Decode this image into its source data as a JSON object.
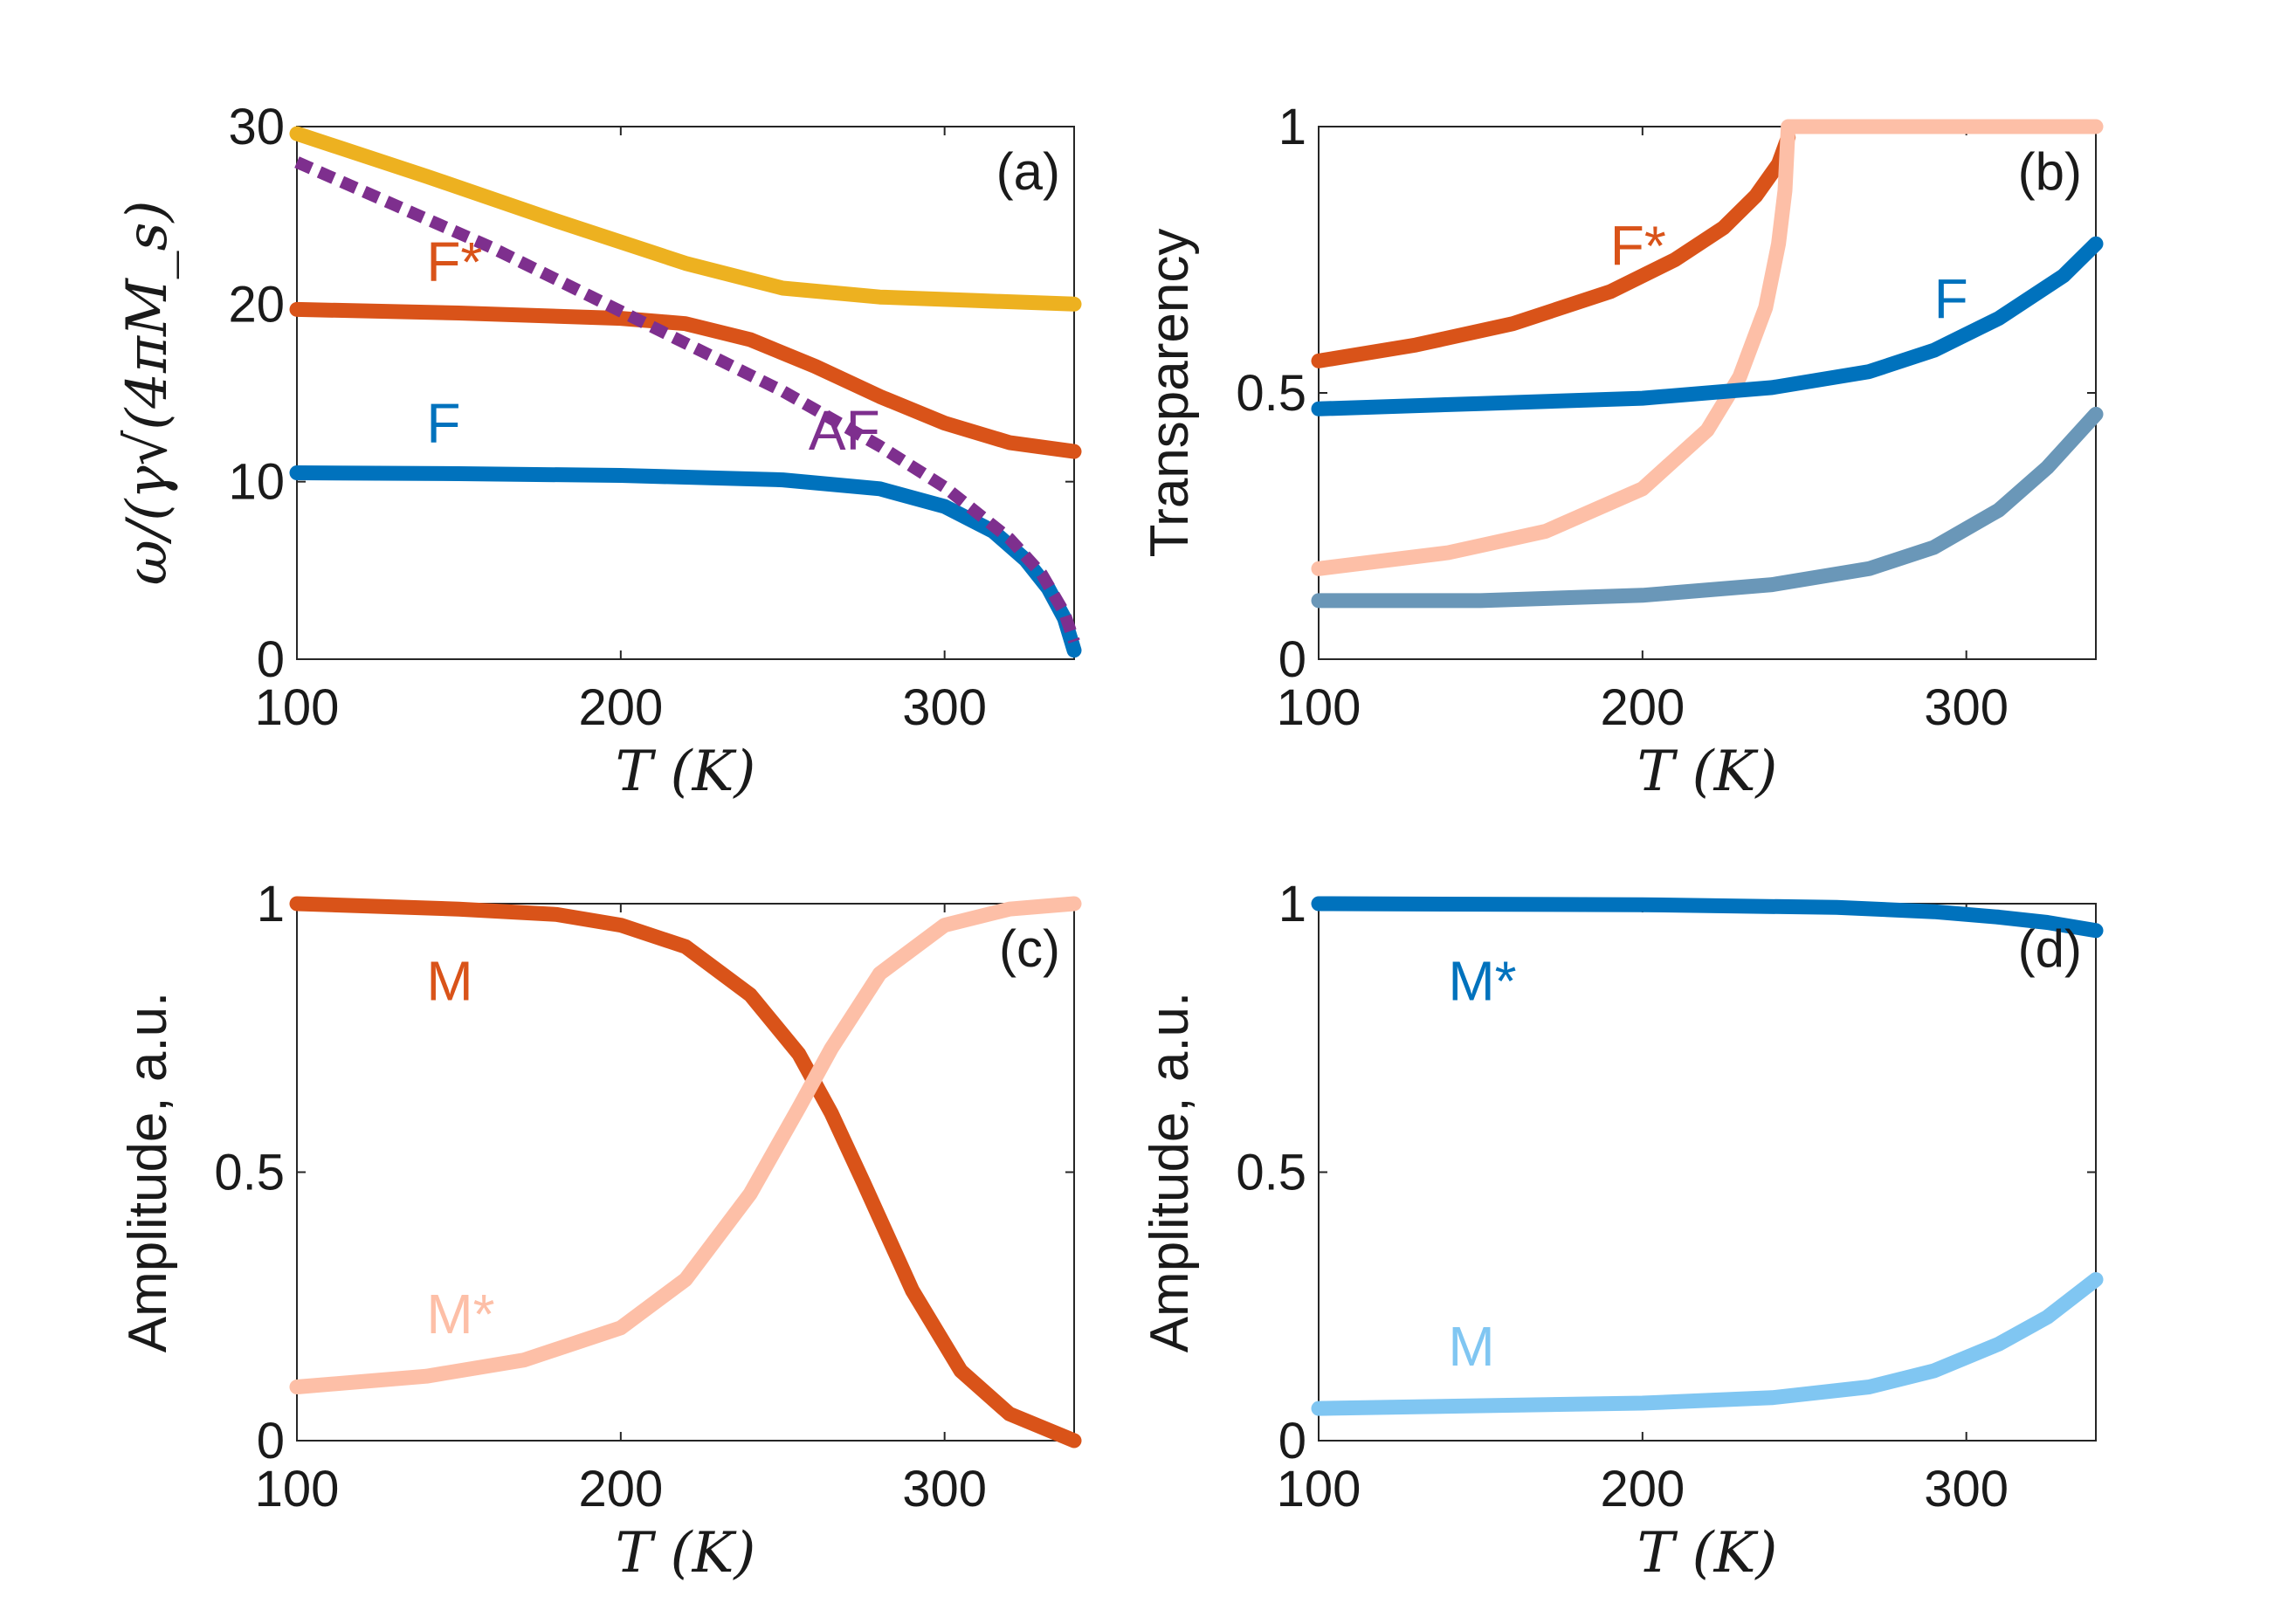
{
  "chart_data": [
    {
      "id": "a",
      "type": "line",
      "panel_label": "(a)",
      "xlabel": "T (K)",
      "ylabel": "ω/(γ√(4πM_s)",
      "xlim": [
        100,
        340
      ],
      "ylim": [
        0,
        30
      ],
      "xticks": [
        100,
        200,
        300
      ],
      "yticks": [
        0,
        10,
        20,
        30
      ],
      "series": [
        {
          "name": "",
          "color": "#EDB120",
          "style": "solid",
          "x": [
            100,
            140,
            180,
            220,
            250,
            280,
            310,
            340
          ],
          "y": [
            29.6,
            27.2,
            24.7,
            22.3,
            20.9,
            20.4,
            20.2,
            20.0
          ]
        },
        {
          "name": "F*",
          "color": "#D95319",
          "style": "solid",
          "x": [
            100,
            150,
            200,
            220,
            240,
            260,
            280,
            300,
            320,
            340
          ],
          "y": [
            19.7,
            19.5,
            19.2,
            18.9,
            18.0,
            16.5,
            14.8,
            13.3,
            12.2,
            11.7
          ]
        },
        {
          "name": "F",
          "color": "#0072BD",
          "style": "solid",
          "x": [
            100,
            150,
            200,
            250,
            280,
            300,
            315,
            325,
            332,
            337,
            340
          ],
          "y": [
            10.5,
            10.45,
            10.35,
            10.1,
            9.6,
            8.6,
            7.2,
            5.6,
            4.0,
            2.3,
            0.5
          ]
        },
        {
          "name": "AF",
          "color": "#7E2F8E",
          "style": "dotted",
          "x": [
            100,
            130,
            160,
            190,
            220,
            250,
            280,
            300,
            320,
            330,
            337,
            340
          ],
          "y": [
            28.0,
            25.6,
            23.2,
            20.5,
            17.8,
            15.1,
            12.0,
            9.7,
            6.8,
            4.8,
            2.6,
            1.0
          ]
        }
      ]
    },
    {
      "id": "b",
      "type": "line",
      "panel_label": "(b)",
      "xlabel": "T (K)",
      "ylabel": "Transparency",
      "xlim": [
        100,
        340
      ],
      "ylim": [
        0,
        1
      ],
      "xticks": [
        100,
        200,
        300
      ],
      "yticks": [
        0,
        0.5,
        1
      ],
      "series": [
        {
          "name": "F*",
          "color": "#D95319",
          "style": "solid",
          "x": [
            100,
            130,
            160,
            190,
            210,
            225,
            235,
            242,
            245
          ],
          "y": [
            0.56,
            0.59,
            0.63,
            0.69,
            0.75,
            0.81,
            0.87,
            0.93,
            0.98
          ]
        },
        {
          "name": "",
          "color": "#FDBFA7",
          "style": "solid",
          "x": [
            100,
            140,
            170,
            200,
            220,
            230,
            238,
            242,
            244,
            245,
            260,
            300,
            340
          ],
          "y": [
            0.17,
            0.2,
            0.24,
            0.32,
            0.43,
            0.53,
            0.66,
            0.78,
            0.88,
            1.0,
            1.0,
            1.0,
            1.0
          ]
        },
        {
          "name": "F",
          "color": "#0072BD",
          "style": "solid",
          "x": [
            100,
            150,
            200,
            240,
            270,
            290,
            310,
            330,
            340
          ],
          "y": [
            0.47,
            0.48,
            0.49,
            0.51,
            0.54,
            0.58,
            0.64,
            0.72,
            0.78
          ]
        },
        {
          "name": "",
          "color": "#6A97B8",
          "style": "solid",
          "x": [
            100,
            150,
            200,
            240,
            270,
            290,
            310,
            325,
            340
          ],
          "y": [
            0.11,
            0.11,
            0.12,
            0.14,
            0.17,
            0.21,
            0.28,
            0.36,
            0.46
          ]
        }
      ]
    },
    {
      "id": "c",
      "type": "line",
      "panel_label": "(c)",
      "xlabel": "T (K)",
      "ylabel": "Amplitude, a.u.",
      "xlim": [
        100,
        340
      ],
      "ylim": [
        0,
        1
      ],
      "xticks": [
        100,
        200,
        300
      ],
      "yticks": [
        0,
        0.5,
        1
      ],
      "series": [
        {
          "name": "M",
          "color": "#D95319",
          "style": "solid",
          "x": [
            100,
            150,
            180,
            200,
            220,
            240,
            255,
            265,
            275,
            290,
            305,
            320,
            340
          ],
          "y": [
            1.0,
            0.99,
            0.98,
            0.96,
            0.92,
            0.83,
            0.72,
            0.61,
            0.48,
            0.28,
            0.13,
            0.05,
            0.0
          ]
        },
        {
          "name": "M*",
          "color": "#FDBFA7",
          "style": "solid",
          "x": [
            100,
            140,
            170,
            200,
            220,
            240,
            255,
            265,
            280,
            300,
            320,
            340
          ],
          "y": [
            0.1,
            0.12,
            0.15,
            0.21,
            0.3,
            0.46,
            0.62,
            0.73,
            0.87,
            0.96,
            0.99,
            1.0
          ]
        }
      ]
    },
    {
      "id": "d",
      "type": "line",
      "panel_label": "(d)",
      "xlabel": "T (K)",
      "ylabel": "Amplitude, a.u.",
      "xlim": [
        100,
        340
      ],
      "ylim": [
        0,
        1
      ],
      "xticks": [
        100,
        200,
        300
      ],
      "yticks": [
        0,
        0.5,
        1
      ],
      "series": [
        {
          "name": "M*",
          "color": "#0072BD",
          "style": "solid",
          "x": [
            100,
            200,
            260,
            290,
            310,
            325,
            340
          ],
          "y": [
            1.0,
            0.998,
            0.993,
            0.985,
            0.975,
            0.965,
            0.95
          ]
        },
        {
          "name": "M",
          "color": "#80C6F2",
          "style": "solid",
          "x": [
            100,
            150,
            200,
            240,
            270,
            290,
            310,
            325,
            340
          ],
          "y": [
            0.06,
            0.065,
            0.07,
            0.08,
            0.1,
            0.13,
            0.18,
            0.23,
            0.3
          ]
        }
      ]
    }
  ]
}
